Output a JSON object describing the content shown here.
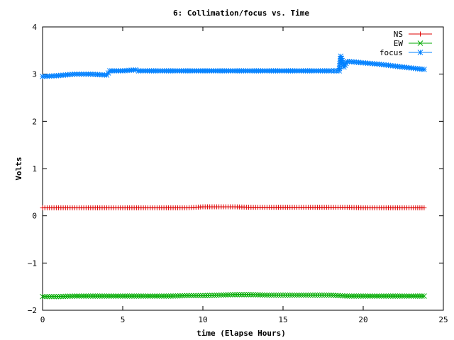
{
  "chart_data": {
    "type": "line",
    "title": "6: Collimation/focus vs. Time",
    "xlabel": "time (Elapse Hours)",
    "ylabel": "Volts",
    "xlim": [
      0,
      25
    ],
    "ylim": [
      -2,
      4
    ],
    "xticks": [
      0,
      5,
      10,
      15,
      20,
      25
    ],
    "yticks": [
      -2,
      -1,
      0,
      1,
      2,
      3,
      4
    ],
    "xtick_labels": [
      "0",
      "5",
      "10",
      "15",
      "20",
      "25"
    ],
    "ytick_labels": [
      "−2",
      "−1",
      "0",
      "1",
      "2",
      "3",
      "4"
    ],
    "grid": false,
    "legend_position": "top-right",
    "series": [
      {
        "name": "NS",
        "color": "#dd0000",
        "marker": "plus",
        "x": [
          0,
          1,
          2,
          3,
          4,
          5,
          6,
          7,
          8,
          9,
          10,
          11,
          12,
          13,
          14,
          15,
          16,
          17,
          18,
          19,
          20,
          21,
          22,
          23,
          23.8
        ],
        "y": [
          0.17,
          0.17,
          0.17,
          0.17,
          0.17,
          0.17,
          0.17,
          0.17,
          0.17,
          0.17,
          0.19,
          0.19,
          0.19,
          0.18,
          0.18,
          0.18,
          0.18,
          0.18,
          0.18,
          0.18,
          0.17,
          0.17,
          0.17,
          0.17,
          0.17
        ]
      },
      {
        "name": "EW",
        "color": "#00aa00",
        "marker": "cross",
        "x": [
          0,
          1,
          2,
          3,
          4,
          5,
          6,
          7,
          8,
          9,
          10,
          11,
          12,
          13,
          14,
          15,
          16,
          17,
          18,
          19,
          20,
          21,
          22,
          23,
          23.8
        ],
        "y": [
          -1.71,
          -1.71,
          -1.7,
          -1.7,
          -1.7,
          -1.7,
          -1.7,
          -1.7,
          -1.7,
          -1.69,
          -1.69,
          -1.68,
          -1.67,
          -1.67,
          -1.68,
          -1.68,
          -1.68,
          -1.68,
          -1.68,
          -1.7,
          -1.7,
          -1.7,
          -1.7,
          -1.7,
          -1.7
        ]
      },
      {
        "name": "focus",
        "color": "#0080ff",
        "marker": "star",
        "x": [
          0,
          1,
          2,
          3,
          4,
          4.2,
          5,
          5.8,
          6,
          8,
          10,
          12,
          14,
          16,
          18,
          18.5,
          18.6,
          18.8,
          19,
          20,
          21,
          22,
          23,
          23.8
        ],
        "y": [
          2.95,
          2.97,
          3.0,
          3.0,
          2.98,
          3.07,
          3.07,
          3.09,
          3.07,
          3.07,
          3.07,
          3.07,
          3.07,
          3.07,
          3.07,
          3.07,
          3.38,
          3.15,
          3.27,
          3.24,
          3.21,
          3.17,
          3.13,
          3.1
        ]
      }
    ]
  }
}
